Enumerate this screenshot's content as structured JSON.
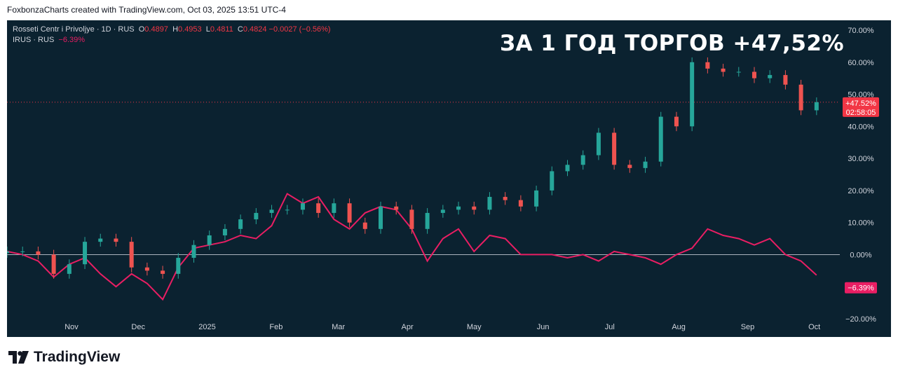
{
  "header": {
    "caption": "FoxbonzaCharts created with TradingView.com, Oct 03, 2025 13:51 UTC-4"
  },
  "legend": {
    "symbol": "Rosseti Centr i Privoljye · 1D · RUS",
    "o_label": "O",
    "o_value": "0.4897",
    "h_label": "H",
    "h_value": "0.4953",
    "l_label": "L",
    "l_value": "0.4811",
    "c_label": "C",
    "c_value": "0.4824 −0.0027 (−0.56%)",
    "compare_symbol": "IRUS · RUS",
    "compare_value": "−6.39%"
  },
  "headline": "ЗА 1 ГОД ТОРГОВ +47,52%",
  "footer": {
    "brand": "TradingView"
  },
  "colors": {
    "background": "#0b2230",
    "up": "#26a69a",
    "down": "#ef5350",
    "compare": "#e91e63",
    "price_label": "#f23645",
    "axis_text": "#d1d4dc"
  },
  "chart_data": {
    "type": "line",
    "title": "Rosseti Centr i Privoljye · 1D · RUS",
    "y_axis_format": "percent",
    "ylim": [
      -20,
      70
    ],
    "y_ticks": [
      "70.00%",
      "60.00%",
      "50.00%",
      "40.00%",
      "30.00%",
      "20.00%",
      "10.00%",
      "0.00%",
      "−10.00%",
      "−20.00%"
    ],
    "x_labels": [
      "Nov",
      "Dec",
      "2025",
      "Feb",
      "Mar",
      "Apr",
      "May",
      "Jun",
      "Jul",
      "Aug",
      "Sep",
      "Oct"
    ],
    "price_label": {
      "value": "+47.52%",
      "countdown": "02:58:05",
      "level": 47.52
    },
    "compare_label": {
      "value": "−6.39%",
      "level": -6.39
    },
    "grid": false,
    "series": [
      {
        "name": "Rosseti Centr i Privoljye",
        "style": "candles",
        "x": [
          "2024-10-03",
          "2024-10-10",
          "2024-10-17",
          "2024-10-24",
          "2024-10-31",
          "2024-11-07",
          "2024-11-14",
          "2024-11-21",
          "2024-11-28",
          "2024-12-05",
          "2024-12-12",
          "2024-12-19",
          "2024-12-26",
          "2025-01-02",
          "2025-01-09",
          "2025-01-16",
          "2025-01-23",
          "2025-01-30",
          "2025-02-06",
          "2025-02-13",
          "2025-02-20",
          "2025-02-27",
          "2025-03-06",
          "2025-03-13",
          "2025-03-20",
          "2025-03-27",
          "2025-04-03",
          "2025-04-10",
          "2025-04-17",
          "2025-04-24",
          "2025-05-01",
          "2025-05-08",
          "2025-05-15",
          "2025-05-22",
          "2025-05-29",
          "2025-06-05",
          "2025-06-12",
          "2025-06-19",
          "2025-06-26",
          "2025-07-03",
          "2025-07-10",
          "2025-07-17",
          "2025-07-24",
          "2025-07-31",
          "2025-08-07",
          "2025-08-14",
          "2025-08-21",
          "2025-08-28",
          "2025-09-04",
          "2025-09-11",
          "2025-09-18",
          "2025-09-25",
          "2025-10-02"
        ],
        "values": [
          1,
          1,
          0,
          -6,
          -3,
          4,
          5,
          4,
          -4,
          -5,
          -6,
          -1,
          3,
          6,
          8,
          11,
          13,
          14,
          14,
          16,
          13,
          16,
          10,
          8,
          15,
          14,
          8,
          13,
          14,
          15,
          14,
          18,
          17,
          15,
          20,
          26,
          28,
          31,
          38,
          28,
          27,
          29,
          43,
          40,
          60,
          58,
          57,
          57,
          55,
          56,
          53,
          45,
          47.52
        ]
      },
      {
        "name": "IRUS",
        "style": "line",
        "x": [
          "2024-10-03",
          "2024-10-10",
          "2024-10-17",
          "2024-10-24",
          "2024-10-31",
          "2024-11-07",
          "2024-11-14",
          "2024-11-21",
          "2024-11-28",
          "2024-12-05",
          "2024-12-12",
          "2024-12-19",
          "2024-12-26",
          "2025-01-02",
          "2025-01-09",
          "2025-01-16",
          "2025-01-23",
          "2025-01-30",
          "2025-02-06",
          "2025-02-13",
          "2025-02-20",
          "2025-02-27",
          "2025-03-06",
          "2025-03-13",
          "2025-03-20",
          "2025-03-27",
          "2025-04-03",
          "2025-04-10",
          "2025-04-17",
          "2025-04-24",
          "2025-05-01",
          "2025-05-08",
          "2025-05-15",
          "2025-05-22",
          "2025-05-29",
          "2025-06-05",
          "2025-06-12",
          "2025-06-19",
          "2025-06-26",
          "2025-07-03",
          "2025-07-10",
          "2025-07-17",
          "2025-07-24",
          "2025-07-31",
          "2025-08-07",
          "2025-08-14",
          "2025-08-21",
          "2025-08-28",
          "2025-09-04",
          "2025-09-11",
          "2025-09-18",
          "2025-09-25",
          "2025-10-02"
        ],
        "values": [
          1,
          0,
          -2,
          -7,
          -3,
          -1,
          -6,
          -10,
          -6,
          -9,
          -14,
          -4,
          2,
          3,
          4,
          6,
          5,
          9,
          19,
          16,
          18,
          11,
          8,
          13,
          15,
          14,
          8,
          -2,
          5,
          8,
          1,
          6,
          5,
          0,
          0,
          0,
          -1,
          0,
          -2,
          1,
          0,
          -1,
          -3,
          0,
          2,
          8,
          6,
          5,
          3,
          5,
          0,
          -2,
          -6.39
        ]
      }
    ]
  }
}
